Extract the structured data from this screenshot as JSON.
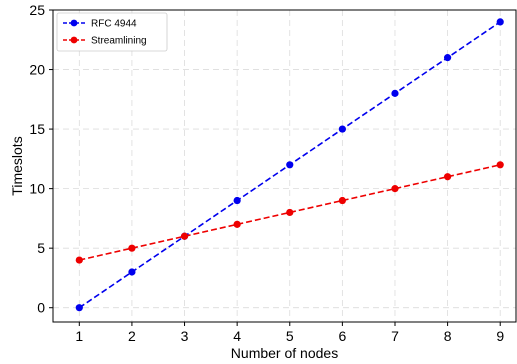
{
  "chart_data": {
    "type": "line",
    "x": [
      1,
      2,
      3,
      4,
      5,
      6,
      7,
      8,
      9
    ],
    "series": [
      {
        "name": "RFC 4944",
        "values": [
          0,
          3,
          6,
          9,
          12,
          15,
          18,
          21,
          24
        ],
        "color": "#0000ee",
        "style": "dashed",
        "marker": "circle"
      },
      {
        "name": "Streamlining",
        "values": [
          4,
          5,
          6,
          7,
          8,
          9,
          10,
          11,
          12
        ],
        "color": "#ee0000",
        "style": "dashed",
        "marker": "circle"
      }
    ],
    "xlabel": "Number of nodes",
    "ylabel": "Timeslots",
    "xlim": [
      0.5,
      9.3
    ],
    "ylim": [
      -1.2,
      25
    ],
    "xticks": [
      1,
      2,
      3,
      4,
      5,
      6,
      7,
      8,
      9
    ],
    "yticks": [
      0,
      5,
      10,
      15,
      20,
      25
    ],
    "grid": true,
    "legend_position": "top-left"
  }
}
